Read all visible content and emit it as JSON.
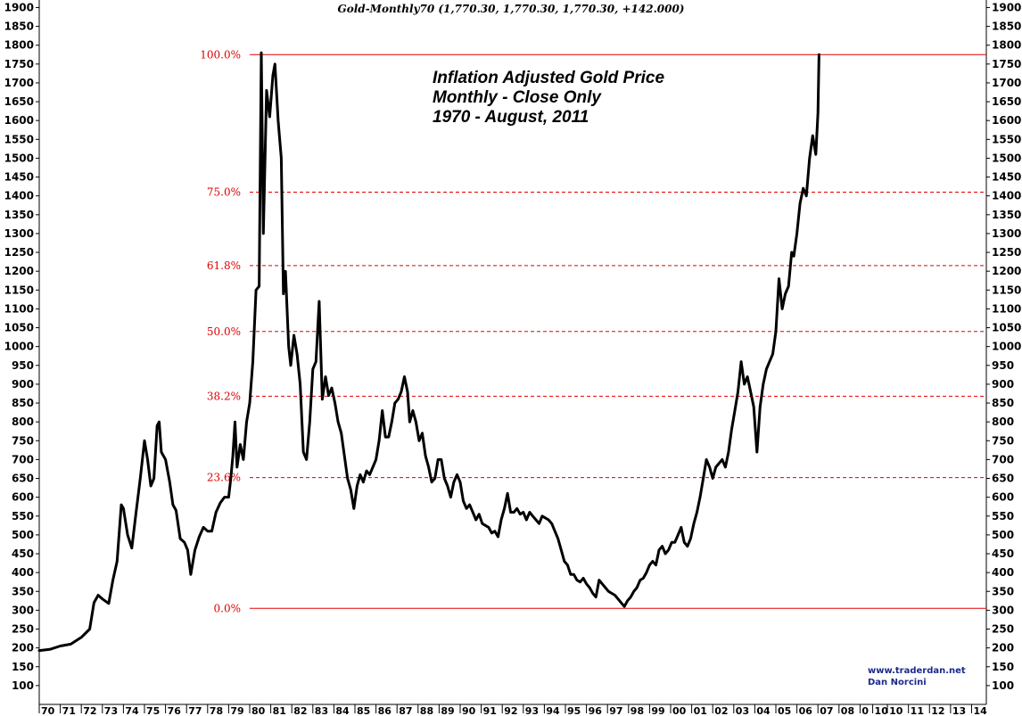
{
  "chart_data": {
    "type": "line",
    "header": "Gold-Monthly70 (1,770.30, 1,770.30, 1,770.30, +142.000)",
    "title": [
      "Inflation Adjusted Gold Price",
      "Monthly - Close Only",
      "1970 - August, 2011"
    ],
    "credits": [
      "www.traderdan.net",
      "Dan Norcini"
    ],
    "xlim": [
      1970,
      2015
    ],
    "ylim": [
      50,
      1920
    ],
    "y_ticks": [
      100,
      150,
      200,
      250,
      300,
      350,
      400,
      450,
      500,
      550,
      600,
      650,
      700,
      750,
      800,
      850,
      900,
      950,
      1000,
      1050,
      1100,
      1150,
      1200,
      1250,
      1300,
      1350,
      1400,
      1450,
      1500,
      1550,
      1600,
      1650,
      1700,
      1750,
      1800,
      1850,
      1900
    ],
    "x_ticks": [
      {
        "pos": 1970,
        "label": "70"
      },
      {
        "pos": 1971,
        "label": "71"
      },
      {
        "pos": 1972,
        "label": "72"
      },
      {
        "pos": 1973,
        "label": "73"
      },
      {
        "pos": 1974,
        "label": "74"
      },
      {
        "pos": 1975,
        "label": "75"
      },
      {
        "pos": 1976,
        "label": "76"
      },
      {
        "pos": 1977,
        "label": "77"
      },
      {
        "pos": 1978,
        "label": "78"
      },
      {
        "pos": 1979,
        "label": "79"
      },
      {
        "pos": 1980,
        "label": "80"
      },
      {
        "pos": 1981,
        "label": "81"
      },
      {
        "pos": 1982,
        "label": "82"
      },
      {
        "pos": 1983,
        "label": "83"
      },
      {
        "pos": 1984,
        "label": "84"
      },
      {
        "pos": 1985,
        "label": "85"
      },
      {
        "pos": 1986,
        "label": "86"
      },
      {
        "pos": 1987,
        "label": "87"
      },
      {
        "pos": 1988,
        "label": "88"
      },
      {
        "pos": 1989,
        "label": "89"
      },
      {
        "pos": 1990,
        "label": "90"
      },
      {
        "pos": 1991,
        "label": "91"
      },
      {
        "pos": 1992,
        "label": "92"
      },
      {
        "pos": 1993,
        "label": "93"
      },
      {
        "pos": 1994,
        "label": "94"
      },
      {
        "pos": 1995,
        "label": "95"
      },
      {
        "pos": 1996,
        "label": "96"
      },
      {
        "pos": 1997,
        "label": "97"
      },
      {
        "pos": 1998,
        "label": "98"
      },
      {
        "pos": 1999,
        "label": "99"
      },
      {
        "pos": 2000,
        "label": "00"
      },
      {
        "pos": 2001,
        "label": "01"
      },
      {
        "pos": 2002,
        "label": "02"
      },
      {
        "pos": 2003,
        "label": "03"
      },
      {
        "pos": 2004,
        "label": "04"
      },
      {
        "pos": 2005,
        "label": "05"
      },
      {
        "pos": 2006,
        "label": "06"
      },
      {
        "pos": 2007,
        "label": "07"
      },
      {
        "pos": 2008,
        "label": "08"
      },
      {
        "pos": 2009,
        "label": "0"
      },
      {
        "pos": 2009.6,
        "label": "10"
      },
      {
        "pos": 2010.3,
        "label": "10"
      },
      {
        "pos": 2011.3,
        "label": "11"
      },
      {
        "pos": 2012.3,
        "label": "12"
      },
      {
        "pos": 2013.3,
        "label": "13"
      },
      {
        "pos": 2014.3,
        "label": "14"
      }
    ],
    "fib_levels": [
      {
        "label": "100.0%",
        "value": 1775,
        "style": "solid"
      },
      {
        "label": "75.0%",
        "value": 1410,
        "style": "dashed"
      },
      {
        "label": "61.8%",
        "value": 1215,
        "style": "dashed"
      },
      {
        "label": "50.0%",
        "value": 1040,
        "style": "dashed"
      },
      {
        "label": "38.2%",
        "value": 868,
        "style": "dashed"
      },
      {
        "label": "23.6%",
        "value": 652,
        "style": "dashed"
      },
      {
        "label": "0.0%",
        "value": 305,
        "style": "solid"
      }
    ],
    "fib_x_start": 1980,
    "series": [
      {
        "color": "#000000",
        "points": [
          [
            1970.0,
            193
          ],
          [
            1970.5,
            196
          ],
          [
            1971.0,
            205
          ],
          [
            1971.5,
            210
          ],
          [
            1972.0,
            228
          ],
          [
            1972.4,
            250
          ],
          [
            1972.6,
            320
          ],
          [
            1972.8,
            340
          ],
          [
            1973.0,
            330
          ],
          [
            1973.3,
            318
          ],
          [
            1973.5,
            380
          ],
          [
            1973.7,
            430
          ],
          [
            1973.9,
            580
          ],
          [
            1974.0,
            570
          ],
          [
            1974.2,
            500
          ],
          [
            1974.4,
            465
          ],
          [
            1974.6,
            560
          ],
          [
            1974.8,
            650
          ],
          [
            1975.0,
            750
          ],
          [
            1975.15,
            700
          ],
          [
            1975.3,
            630
          ],
          [
            1975.45,
            650
          ],
          [
            1975.6,
            790
          ],
          [
            1975.7,
            800
          ],
          [
            1975.8,
            720
          ],
          [
            1976.0,
            700
          ],
          [
            1976.2,
            640
          ],
          [
            1976.35,
            580
          ],
          [
            1976.5,
            565
          ],
          [
            1976.7,
            490
          ],
          [
            1976.9,
            480
          ],
          [
            1977.05,
            460
          ],
          [
            1977.2,
            395
          ],
          [
            1977.4,
            460
          ],
          [
            1977.6,
            495
          ],
          [
            1977.8,
            520
          ],
          [
            1978.0,
            510
          ],
          [
            1978.2,
            510
          ],
          [
            1978.4,
            560
          ],
          [
            1978.6,
            585
          ],
          [
            1978.8,
            600
          ],
          [
            1979.0,
            600
          ],
          [
            1979.1,
            650
          ],
          [
            1979.2,
            710
          ],
          [
            1979.3,
            800
          ],
          [
            1979.4,
            680
          ],
          [
            1979.55,
            740
          ],
          [
            1979.7,
            700
          ],
          [
            1979.85,
            800
          ],
          [
            1980.0,
            850
          ],
          [
            1980.15,
            960
          ],
          [
            1980.3,
            1150
          ],
          [
            1980.45,
            1160
          ],
          [
            1980.55,
            1780
          ],
          [
            1980.65,
            1300
          ],
          [
            1980.8,
            1680
          ],
          [
            1980.95,
            1610
          ],
          [
            1981.1,
            1720
          ],
          [
            1981.2,
            1750
          ],
          [
            1981.35,
            1600
          ],
          [
            1981.5,
            1500
          ],
          [
            1981.6,
            1140
          ],
          [
            1981.7,
            1200
          ],
          [
            1981.85,
            1000
          ],
          [
            1981.95,
            950
          ],
          [
            1982.1,
            1030
          ],
          [
            1982.25,
            980
          ],
          [
            1982.4,
            900
          ],
          [
            1982.55,
            720
          ],
          [
            1982.7,
            700
          ],
          [
            1982.85,
            800
          ],
          [
            1983.0,
            940
          ],
          [
            1983.15,
            960
          ],
          [
            1983.3,
            1120
          ],
          [
            1983.45,
            860
          ],
          [
            1983.6,
            920
          ],
          [
            1983.75,
            870
          ],
          [
            1983.9,
            890
          ],
          [
            1984.05,
            850
          ],
          [
            1984.2,
            800
          ],
          [
            1984.35,
            770
          ],
          [
            1984.5,
            710
          ],
          [
            1984.65,
            650
          ],
          [
            1984.8,
            620
          ],
          [
            1984.95,
            570
          ],
          [
            1985.1,
            630
          ],
          [
            1985.25,
            660
          ],
          [
            1985.4,
            640
          ],
          [
            1985.55,
            670
          ],
          [
            1985.7,
            660
          ],
          [
            1985.85,
            680
          ],
          [
            1986.0,
            700
          ],
          [
            1986.15,
            750
          ],
          [
            1986.3,
            830
          ],
          [
            1986.45,
            760
          ],
          [
            1986.6,
            760
          ],
          [
            1986.75,
            800
          ],
          [
            1986.9,
            850
          ],
          [
            1987.05,
            860
          ],
          [
            1987.2,
            880
          ],
          [
            1987.35,
            920
          ],
          [
            1987.5,
            880
          ],
          [
            1987.6,
            800
          ],
          [
            1987.75,
            830
          ],
          [
            1987.9,
            800
          ],
          [
            1988.05,
            750
          ],
          [
            1988.2,
            770
          ],
          [
            1988.35,
            710
          ],
          [
            1988.5,
            680
          ],
          [
            1988.65,
            640
          ],
          [
            1988.8,
            650
          ],
          [
            1988.95,
            700
          ],
          [
            1989.1,
            700
          ],
          [
            1989.25,
            650
          ],
          [
            1989.4,
            630
          ],
          [
            1989.55,
            600
          ],
          [
            1989.7,
            640
          ],
          [
            1989.85,
            660
          ],
          [
            1990.0,
            640
          ],
          [
            1990.15,
            590
          ],
          [
            1990.3,
            570
          ],
          [
            1990.45,
            580
          ],
          [
            1990.6,
            560
          ],
          [
            1990.75,
            540
          ],
          [
            1990.9,
            555
          ],
          [
            1991.05,
            530
          ],
          [
            1991.2,
            525
          ],
          [
            1991.35,
            520
          ],
          [
            1991.5,
            505
          ],
          [
            1991.65,
            510
          ],
          [
            1991.8,
            495
          ],
          [
            1991.95,
            540
          ],
          [
            1992.1,
            570
          ],
          [
            1992.25,
            610
          ],
          [
            1992.4,
            560
          ],
          [
            1992.55,
            560
          ],
          [
            1992.7,
            570
          ],
          [
            1992.85,
            555
          ],
          [
            1993.0,
            560
          ],
          [
            1993.15,
            540
          ],
          [
            1993.3,
            560
          ],
          [
            1993.45,
            550
          ],
          [
            1993.6,
            540
          ],
          [
            1993.75,
            530
          ],
          [
            1993.9,
            550
          ],
          [
            1994.05,
            545
          ],
          [
            1994.2,
            540
          ],
          [
            1994.35,
            530
          ],
          [
            1994.5,
            510
          ],
          [
            1994.65,
            490
          ],
          [
            1994.8,
            460
          ],
          [
            1994.95,
            430
          ],
          [
            1995.1,
            420
          ],
          [
            1995.25,
            395
          ],
          [
            1995.4,
            395
          ],
          [
            1995.55,
            380
          ],
          [
            1995.7,
            375
          ],
          [
            1995.85,
            385
          ],
          [
            1996.0,
            370
          ],
          [
            1996.15,
            360
          ],
          [
            1996.3,
            345
          ],
          [
            1996.45,
            335
          ],
          [
            1996.6,
            380
          ],
          [
            1996.75,
            370
          ],
          [
            1996.9,
            360
          ],
          [
            1997.05,
            350
          ],
          [
            1997.2,
            345
          ],
          [
            1997.35,
            340
          ],
          [
            1997.5,
            330
          ],
          [
            1997.65,
            320
          ],
          [
            1997.8,
            310
          ],
          [
            1997.95,
            325
          ],
          [
            1998.1,
            335
          ],
          [
            1998.25,
            350
          ],
          [
            1998.4,
            360
          ],
          [
            1998.55,
            380
          ],
          [
            1998.7,
            385
          ],
          [
            1998.85,
            400
          ],
          [
            1999.0,
            420
          ],
          [
            1999.15,
            430
          ],
          [
            1999.3,
            420
          ],
          [
            1999.45,
            460
          ],
          [
            1999.6,
            470
          ],
          [
            1999.75,
            450
          ],
          [
            1999.9,
            460
          ],
          [
            2000.05,
            480
          ],
          [
            2000.2,
            480
          ],
          [
            2000.35,
            500
          ],
          [
            2000.5,
            520
          ],
          [
            2000.65,
            480
          ],
          [
            2000.8,
            470
          ],
          [
            2000.95,
            490
          ],
          [
            2001.1,
            530
          ],
          [
            2001.25,
            560
          ],
          [
            2001.4,
            600
          ],
          [
            2001.55,
            650
          ],
          [
            2001.7,
            700
          ],
          [
            2001.85,
            680
          ],
          [
            2002.0,
            650
          ],
          [
            2002.15,
            680
          ],
          [
            2002.3,
            690
          ],
          [
            2002.45,
            700
          ],
          [
            2002.6,
            680
          ],
          [
            2002.75,
            720
          ],
          [
            2002.9,
            780
          ],
          [
            2003.05,
            830
          ],
          [
            2003.2,
            880
          ],
          [
            2003.35,
            960
          ],
          [
            2003.5,
            900
          ],
          [
            2003.65,
            920
          ],
          [
            2003.8,
            880
          ],
          [
            2003.95,
            840
          ],
          [
            2004.1,
            720
          ],
          [
            2004.25,
            840
          ],
          [
            2004.4,
            900
          ],
          [
            2004.55,
            940
          ],
          [
            2004.7,
            960
          ],
          [
            2004.85,
            980
          ],
          [
            2005.0,
            1040
          ],
          [
            2005.15,
            1180
          ],
          [
            2005.3,
            1100
          ],
          [
            2005.45,
            1140
          ],
          [
            2005.6,
            1160
          ],
          [
            2005.75,
            1250
          ],
          [
            2005.85,
            1240
          ],
          [
            2006.0,
            1300
          ],
          [
            2006.15,
            1380
          ],
          [
            2006.3,
            1420
          ],
          [
            2006.45,
            1400
          ],
          [
            2006.6,
            1500
          ],
          [
            2006.75,
            1560
          ],
          [
            2006.9,
            1510
          ],
          [
            2007.0,
            1620
          ],
          [
            2007.05,
            1775
          ]
        ]
      }
    ]
  }
}
